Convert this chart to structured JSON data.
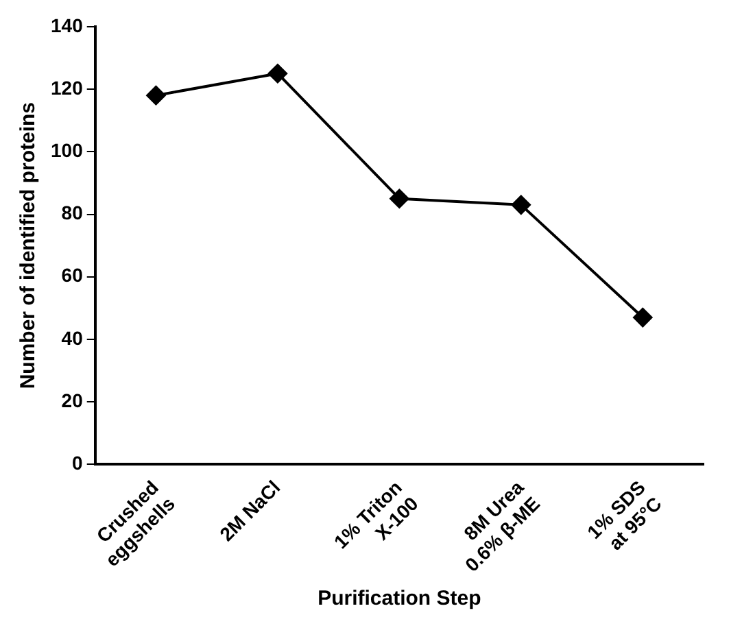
{
  "chart_data": {
    "type": "line",
    "xlabel": "Purification Step",
    "ylabel": "Number of identified proteins",
    "categories": [
      "Crushed\neggshells",
      "2M NaCl",
      "1% Triton\nX-100",
      "8M Urea\n0.6% β-ME",
      "1% SDS\nat 95°C"
    ],
    "series": [
      {
        "color": "#000000",
        "values": [
          118,
          125,
          85,
          83,
          47
        ]
      }
    ],
    "ylim": [
      0,
      140
    ],
    "yticks": [
      0,
      20,
      40,
      60,
      80,
      100,
      120,
      140
    ],
    "grid": false,
    "legend": false,
    "marker": "diamond",
    "line_style": "solid"
  }
}
